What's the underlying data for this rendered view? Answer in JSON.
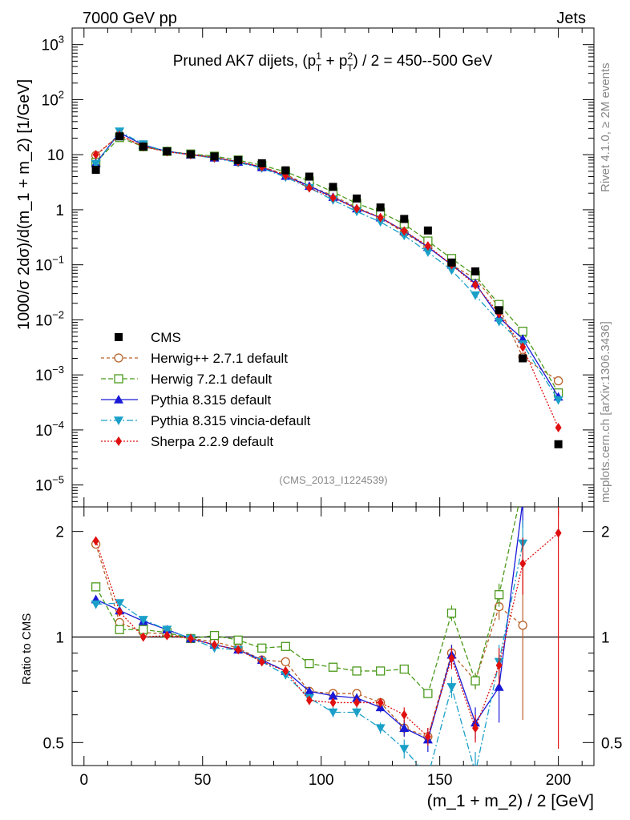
{
  "header": {
    "energy_label": "7000 GeV pp",
    "process_label": "Jets",
    "side_top": "Rivet 4.1.0, ≥ 2M events",
    "side_bottom": "mcplots.cern.ch [arXiv:1306.3436]"
  },
  "chart_data": {
    "type": "scatter",
    "title": "Pruned AK7 dijets, (pT1 + pT2) / 2 = 450--500 GeV",
    "title_parts": {
      "a": "Pruned AK7 dijets, (p",
      "sup1": "1",
      "sub1": "T",
      "b": " + p",
      "sup2": "2",
      "sub2": "T",
      "c": ") / 2 = 450--500 GeV"
    },
    "analysis_id": "(CMS_2013_I1224539)",
    "xlabel": "(m_1 + m_2) / 2 [GeV]",
    "ylabel": "1000/σ  2dσ)/d(m_1 + m_2) [1/GeV]",
    "ratio_ylabel": "Ratio to CMS",
    "xlim": [
      -5,
      215
    ],
    "ylim": [
      4e-06,
      2000
    ],
    "yscale": "log",
    "ratio_ylim": [
      0.43,
      2.35
    ],
    "ratio_yscale": "log",
    "x_ticks": [
      0,
      50,
      100,
      150,
      200
    ],
    "x_tick_labels": [
      "0",
      "50",
      "100",
      "150",
      "200"
    ],
    "y_ticks": [
      {
        "value": 1000,
        "base": "10",
        "exp": "3"
      },
      {
        "value": 100,
        "base": "10",
        "exp": "2"
      },
      {
        "value": 10,
        "base": "10",
        "exp": ""
      },
      {
        "value": 1,
        "base": "1",
        "exp": ""
      },
      {
        "value": 0.1,
        "base": "10",
        "exp": "−1"
      },
      {
        "value": 0.01,
        "base": "10",
        "exp": "−2"
      },
      {
        "value": 0.001,
        "base": "10",
        "exp": "−3"
      },
      {
        "value": 0.0001,
        "base": "10",
        "exp": "−4"
      },
      {
        "value": 1e-05,
        "base": "10",
        "exp": "−5"
      }
    ],
    "ratio_ticks": [
      {
        "value": 2,
        "label": "2"
      },
      {
        "value": 1,
        "label": "1"
      },
      {
        "value": 0.5,
        "label": "0.5"
      }
    ],
    "x": [
      5,
      15,
      25,
      35,
      45,
      55,
      65,
      75,
      85,
      95,
      105,
      115,
      125,
      135,
      145,
      155,
      165,
      175,
      185,
      200
    ],
    "data": {
      "name": "CMS",
      "values": [
        5.3,
        21.5,
        14.0,
        11.5,
        10.2,
        9.3,
        8.0,
        7.0,
        5.2,
        4.0,
        2.6,
        1.6,
        1.1,
        0.68,
        0.42,
        0.11,
        0.076,
        0.015,
        0.002,
        5.5e-05
      ]
    },
    "series": [
      {
        "name": "Herwig++ 2.7.1 default",
        "color": "#b8622a",
        "marker": "circle-open",
        "dash": "4,3",
        "values": [
          9.7,
          23.0,
          14.0,
          11.5,
          10.2,
          9.0,
          7.4,
          6.0,
          4.4,
          2.7,
          1.8,
          1.1,
          0.72,
          0.38,
          0.21,
          0.1,
          0.056,
          0.017,
          0.0021,
          0.00078
        ],
        "ratio": [
          1.84,
          1.1,
          1.03,
          1.02,
          0.99,
          0.97,
          0.93,
          0.86,
          0.85,
          0.7,
          0.69,
          0.69,
          0.65,
          0.55,
          0.52,
          0.9,
          0.75,
          1.22,
          1.08,
          null
        ],
        "ratio_err": [
          0.05,
          0,
          0,
          0,
          0,
          0,
          0,
          0,
          0,
          0.02,
          0.02,
          0.02,
          0.02,
          0.03,
          0.03,
          0.05,
          0.04,
          0.1,
          0.5,
          0
        ]
      },
      {
        "name": "Herwig 7.2.1 default",
        "color": "#4c9a1c",
        "marker": "square-open",
        "dash": "6,3",
        "values": [
          7.2,
          20.5,
          14.0,
          11.5,
          10.3,
          9.4,
          8.0,
          6.4,
          4.9,
          3.3,
          2.1,
          1.3,
          0.9,
          0.55,
          0.27,
          0.13,
          0.064,
          0.019,
          0.0062,
          0.00047
        ],
        "ratio": [
          1.39,
          1.05,
          1.05,
          1.03,
          0.99,
          1.01,
          0.98,
          0.93,
          0.94,
          0.84,
          0.82,
          0.8,
          0.8,
          0.81,
          0.69,
          1.17,
          0.75,
          1.32,
          2.7,
          null
        ],
        "ratio_err": [
          0,
          0,
          0,
          0,
          0,
          0,
          0,
          0,
          0,
          0,
          0,
          0,
          0,
          0,
          0.02,
          0.06,
          0.04,
          0.1,
          0.4,
          0
        ]
      },
      {
        "name": "Pythia 8.315 default",
        "color": "#1a1ad6",
        "marker": "triangle-up",
        "dash": "",
        "values": [
          7.0,
          25.0,
          15.0,
          11.5,
          10.0,
          8.8,
          7.4,
          5.9,
          4.1,
          2.7,
          1.7,
          1.05,
          0.72,
          0.41,
          0.21,
          0.1,
          0.046,
          0.011,
          0.0045,
          0.0004
        ],
        "ratio": [
          1.28,
          1.19,
          1.11,
          1.05,
          0.99,
          0.95,
          0.92,
          0.86,
          0.8,
          0.7,
          0.68,
          0.67,
          0.63,
          0.55,
          0.51,
          0.89,
          0.57,
          0.72,
          2.45,
          null
        ],
        "ratio_err": [
          0,
          0,
          0,
          0,
          0,
          0,
          0,
          0,
          0,
          0.02,
          0.02,
          0.02,
          0.02,
          0.03,
          0.04,
          0.06,
          0.06,
          0.15,
          0.4,
          0
        ]
      },
      {
        "name": "Pythia 8.315 vincia-default",
        "color": "#1aa0c8",
        "marker": "triangle-down",
        "dash": "8,3,2,3",
        "values": [
          6.8,
          26.5,
          15.5,
          11.3,
          10.0,
          8.6,
          7.2,
          5.7,
          3.9,
          2.5,
          1.5,
          0.93,
          0.6,
          0.34,
          0.17,
          0.08,
          0.028,
          0.0093,
          0.0036,
          0.00035
        ],
        "ratio": [
          1.24,
          1.25,
          1.12,
          1.05,
          0.99,
          0.93,
          0.92,
          0.85,
          0.78,
          0.67,
          0.61,
          0.61,
          0.55,
          0.48,
          0.4,
          0.72,
          0.41,
          0.85,
          1.85,
          null
        ],
        "ratio_err": [
          0,
          0,
          0,
          0,
          0,
          0,
          0,
          0,
          0,
          0.02,
          0.02,
          0.02,
          0.02,
          0.03,
          0.03,
          0.05,
          0.06,
          0.1,
          0.3,
          0
        ]
      },
      {
        "name": "Sherpa 2.2.9 default",
        "color": "#e01010",
        "marker": "diamond",
        "dash": "2,2",
        "values": [
          10.0,
          22.5,
          14.0,
          11.3,
          10.0,
          8.8,
          7.5,
          6.0,
          4.2,
          2.5,
          1.65,
          1.05,
          0.72,
          0.41,
          0.22,
          0.1,
          0.043,
          0.013,
          0.0032,
          0.00011
        ],
        "ratio": [
          1.88,
          1.18,
          1.0,
          1.01,
          0.99,
          0.95,
          0.92,
          0.85,
          0.8,
          0.66,
          0.65,
          0.65,
          0.65,
          0.6,
          0.52,
          0.87,
          0.55,
          0.83,
          1.62,
          1.98
        ],
        "ratio_err": [
          0,
          0,
          0,
          0,
          0,
          0,
          0,
          0,
          0,
          0.02,
          0.02,
          0.02,
          0.02,
          0.03,
          0.03,
          0.06,
          0.05,
          0.1,
          0.3,
          1.5
        ]
      }
    ]
  }
}
